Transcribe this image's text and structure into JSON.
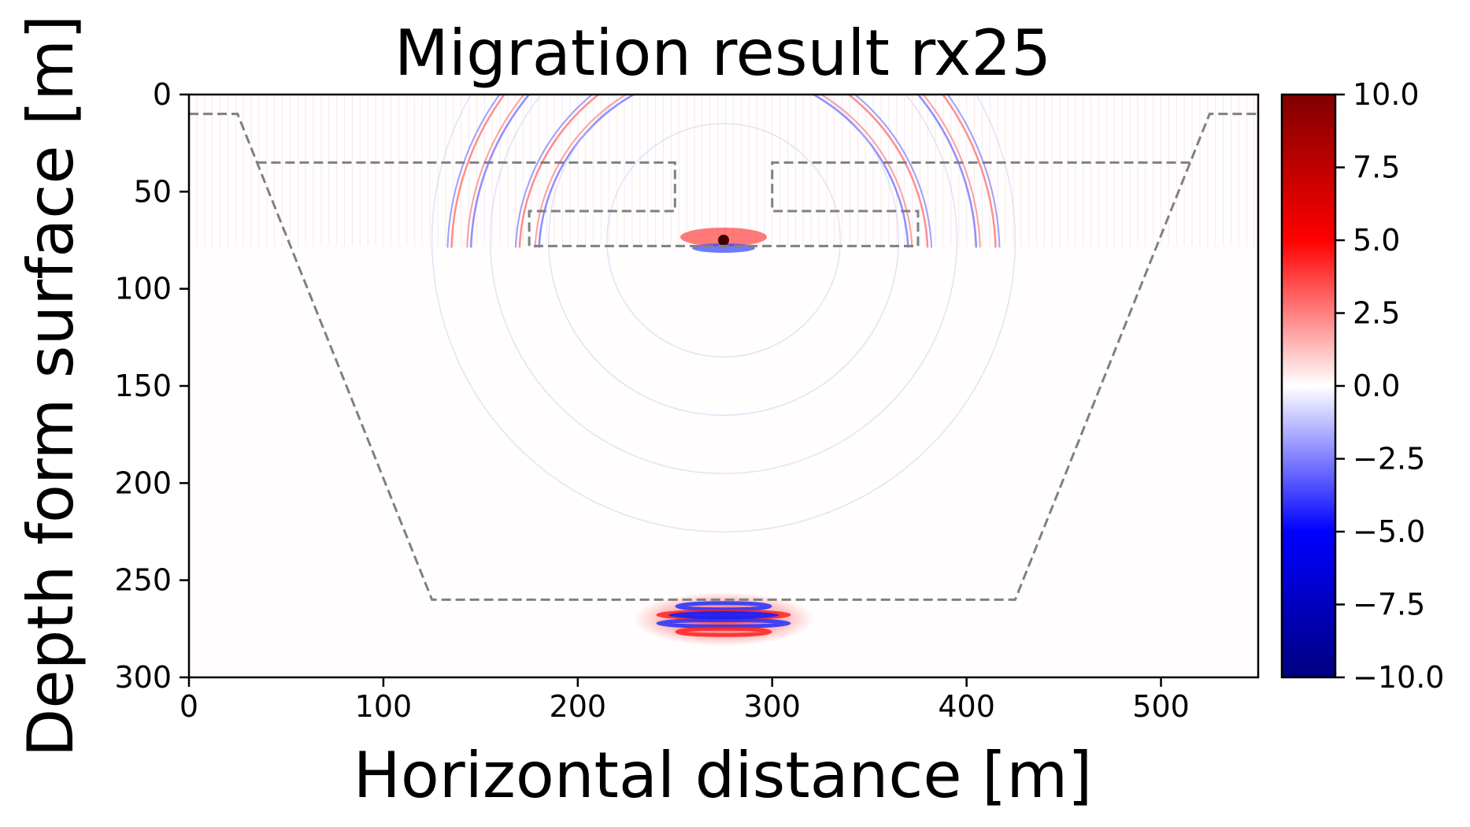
{
  "chart_data": {
    "type": "heatmap",
    "title": "Migration result rx25",
    "xlabel": "Horizontal distance [m]",
    "ylabel": "Depth form surface [m]",
    "xlim": [
      0,
      550
    ],
    "ylim": [
      300,
      0
    ],
    "y_inverted": true,
    "x_ticks": [
      "0",
      "100",
      "200",
      "300",
      "400",
      "500"
    ],
    "x_tick_values": [
      0,
      100,
      200,
      300,
      400,
      500
    ],
    "y_ticks": [
      "0",
      "50",
      "100",
      "150",
      "200",
      "250",
      "300"
    ],
    "y_tick_values": [
      0,
      50,
      100,
      150,
      200,
      250,
      300
    ],
    "grid": false,
    "colormap": "seismic",
    "colorbar": {
      "range": [
        -10,
        10
      ],
      "ticks": [
        "10.0",
        "7.5",
        "5.0",
        "2.5",
        "0.0",
        "−2.5",
        "−5.0",
        "−7.5",
        "−10.0"
      ],
      "tick_values": [
        10,
        7.5,
        5,
        2.5,
        0,
        -2.5,
        -5,
        -7.5,
        -10
      ],
      "colors": {
        "max": "#800000",
        "pos": "#ff0000",
        "zero": "#ffffff",
        "neg": "#0000ff",
        "min": "#000080"
      }
    },
    "outline_style": {
      "color": "#808080",
      "dash": "dashed"
    },
    "outlines": [
      {
        "name": "pit",
        "points": [
          [
            0,
            10
          ],
          [
            25,
            10
          ],
          [
            125,
            260
          ],
          [
            425,
            260
          ],
          [
            525,
            10
          ],
          [
            550,
            10
          ]
        ]
      },
      {
        "name": "left-block",
        "points": [
          [
            35,
            35
          ],
          [
            250,
            35
          ],
          [
            250,
            60
          ],
          [
            175,
            60
          ],
          [
            175,
            78
          ],
          [
            275,
            78
          ]
        ]
      },
      {
        "name": "right-block",
        "points": [
          [
            515,
            35
          ],
          [
            300,
            35
          ],
          [
            300,
            60
          ],
          [
            375,
            60
          ],
          [
            375,
            78
          ],
          [
            275,
            78
          ]
        ]
      }
    ],
    "features": {
      "source_point": [
        275,
        75
      ],
      "bottom_reflection_center": [
        275,
        270
      ],
      "arc_radii_m": [
        95,
        105,
        130,
        140
      ]
    }
  }
}
